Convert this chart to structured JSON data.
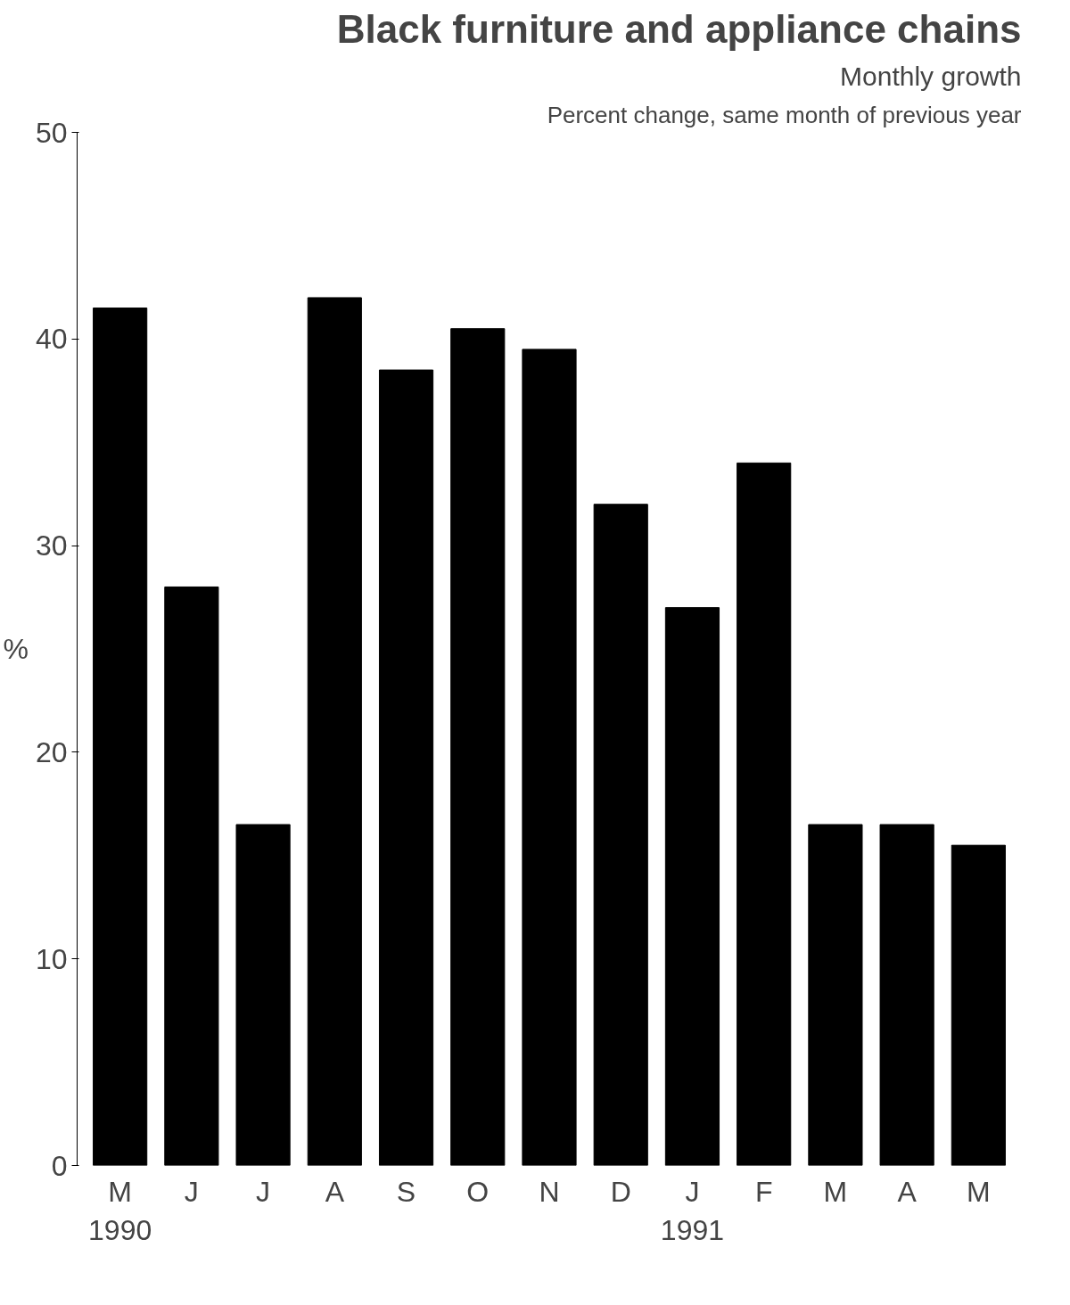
{
  "chart_data": {
    "type": "bar",
    "title": "Black furniture and appliance chains",
    "subtitle": "Monthly growth",
    "annotations": [
      "Percent change, same month of previous year"
    ],
    "ylabel": "%",
    "categories": [
      "M\n1990",
      "J",
      "J",
      "A",
      "S",
      "O",
      "N",
      "D",
      "J\n1991",
      "F",
      "M",
      "A",
      "M"
    ],
    "values": [
      41.5,
      28,
      16.5,
      42,
      38.5,
      40.5,
      39.5,
      32,
      27,
      34,
      16.5,
      16.5,
      15.5
    ],
    "color": "#000000",
    "ylim": [
      0,
      50
    ],
    "yticks": [
      0,
      10,
      20,
      30,
      40,
      50
    ],
    "grid": false
  }
}
